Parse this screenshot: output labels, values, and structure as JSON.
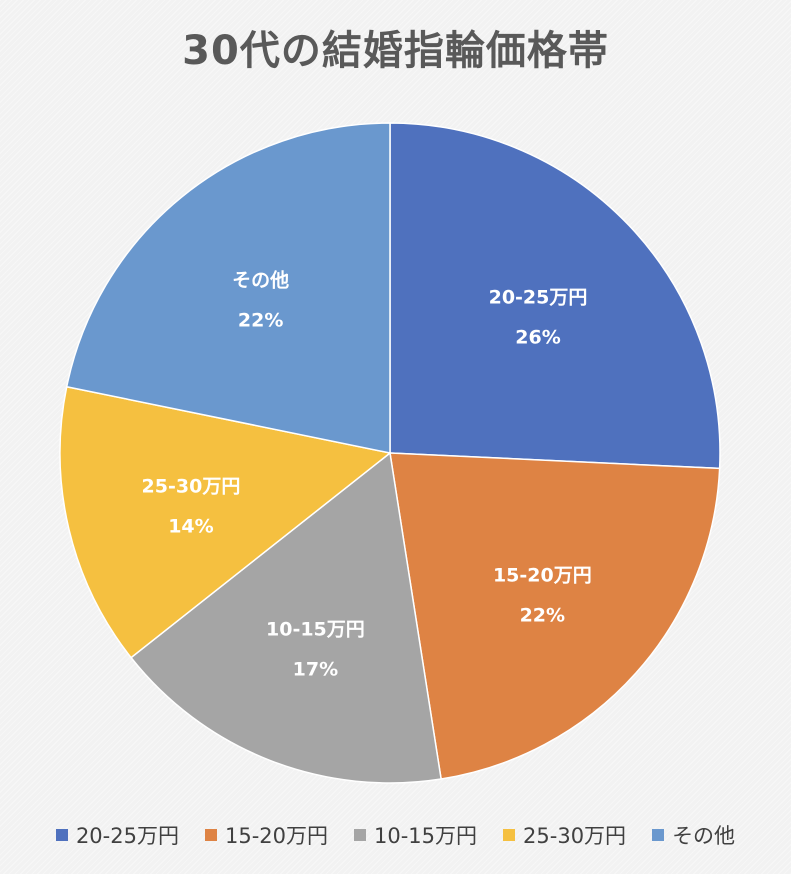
{
  "chart_data": {
    "type": "pie",
    "title": "30代の結婚指輪価格帯",
    "start_angle_deg": 0,
    "direction": "clockwise",
    "legend_position": "bottom",
    "slices": [
      {
        "label": "20-25万円",
        "value": 26,
        "value_label": "26%",
        "color": "#4f71be"
      },
      {
        "label": "15-20万円",
        "value": 22,
        "value_label": "22%",
        "color": "#de8344"
      },
      {
        "label": "10-15万円",
        "value": 17,
        "value_label": "17%",
        "color": "#a5a5a5"
      },
      {
        "label": "25-30万円",
        "value": 14,
        "value_label": "14%",
        "color": "#f5c040"
      },
      {
        "label": "その他",
        "value": 22,
        "value_label": "22%",
        "color": "#6a98ce"
      }
    ]
  }
}
